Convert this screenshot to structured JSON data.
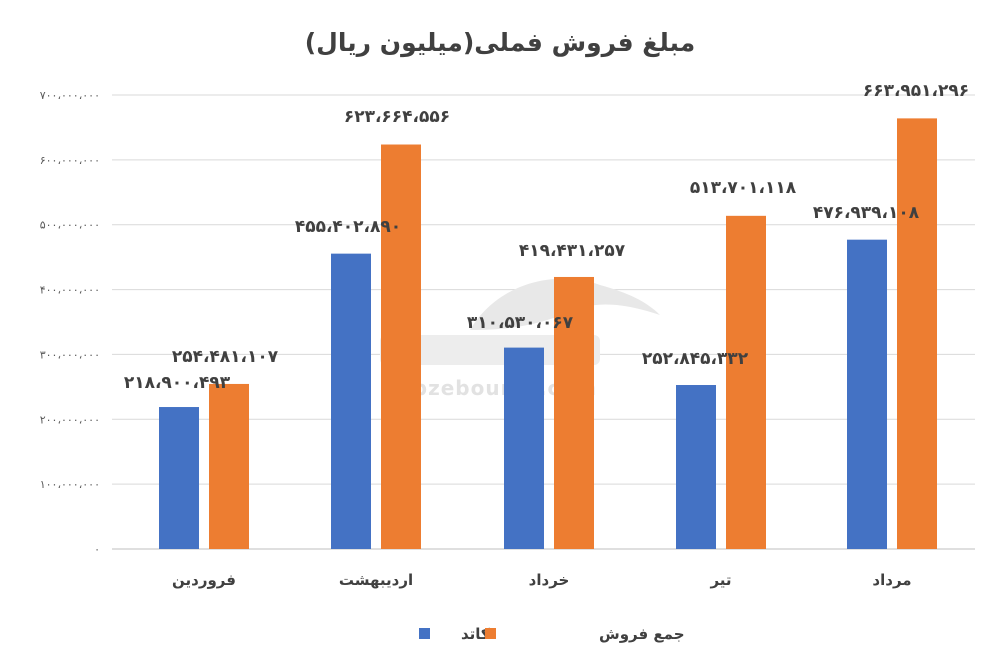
{
  "chart_data": {
    "type": "bar",
    "title": "مبلغ فروش فملی(میلیون ریال)",
    "categories": [
      "فروردین",
      "اردیبهشت",
      "خرداد",
      "تیر",
      "مرداد"
    ],
    "series": [
      {
        "name": "کاتد",
        "color": "#4472C4",
        "values": [
          218900493,
          455402890,
          310530067,
          252845332,
          476939108
        ],
        "labels": [
          "۲۱۸،۹۰۰،۴۹۳",
          "۴۵۵،۴۰۲،۸۹۰",
          "۳۱۰،۵۳۰،۰۶۷",
          "۲۵۲،۸۴۵،۳۳۲",
          "۴۷۶،۹۳۹،۱۰۸"
        ]
      },
      {
        "name": "جمع فروش",
        "color": "#ED7D31",
        "values": [
          254481107,
          623664556,
          419431257,
          513701118,
          663951296
        ],
        "labels": [
          "۲۵۴،۴۸۱،۱۰۷",
          "۶۲۳،۶۶۴،۵۵۶",
          "۴۱۹،۴۳۱،۲۵۷",
          "۵۱۳،۷۰۱،۱۱۸",
          "۶۶۳،۹۵۱،۲۹۶"
        ]
      }
    ],
    "ylim": [
      0,
      700000000
    ],
    "yticks": [
      0,
      100000000,
      200000000,
      300000000,
      400000000,
      500000000,
      600000000,
      700000000
    ],
    "ytick_labels": [
      "۰",
      "۱۰۰،۰۰۰،۰۰۰",
      "۲۰۰،۰۰۰،۰۰۰",
      "۳۰۰،۰۰۰،۰۰۰",
      "۴۰۰،۰۰۰،۰۰۰",
      "۵۰۰،۰۰۰،۰۰۰",
      "۶۰۰،۰۰۰،۰۰۰",
      "۷۰۰،۰۰۰،۰۰۰"
    ],
    "grid": true,
    "legend_position": "bottom",
    "watermark": "nabzebourse.com"
  }
}
